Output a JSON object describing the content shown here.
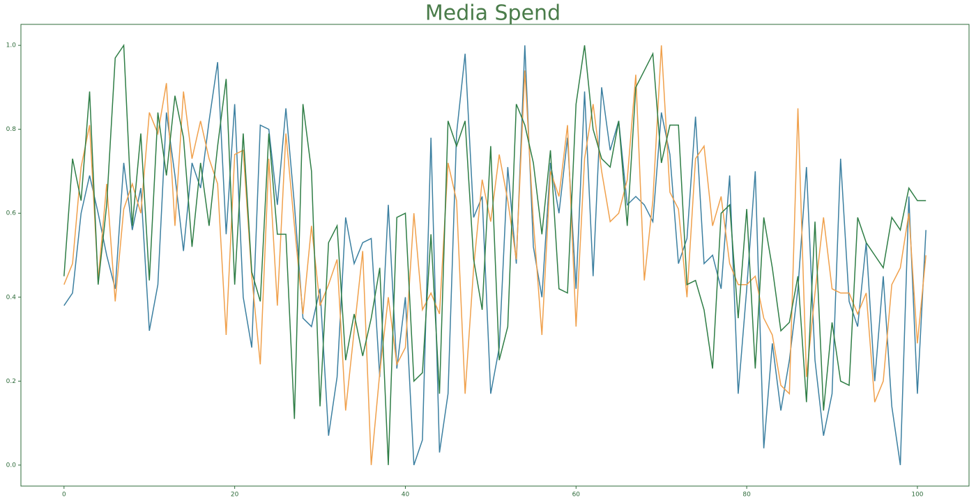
{
  "chart_data": {
    "type": "line",
    "title": "Media Spend",
    "x": [
      0,
      1,
      2,
      3,
      4,
      5,
      6,
      7,
      8,
      9,
      10,
      11,
      12,
      13,
      14,
      15,
      16,
      17,
      18,
      19,
      20,
      21,
      22,
      23,
      24,
      25,
      26,
      27,
      28,
      29,
      30,
      31,
      32,
      33,
      34,
      35,
      36,
      37,
      38,
      39,
      40,
      41,
      42,
      43,
      44,
      45,
      46,
      47,
      48,
      49,
      50,
      51,
      52,
      53,
      54,
      55,
      56,
      57,
      58,
      59,
      60,
      61,
      62,
      63,
      64,
      65,
      66,
      67,
      68,
      69,
      70,
      71,
      72,
      73,
      74,
      75,
      76,
      77,
      78,
      79,
      80,
      81,
      82,
      83,
      84,
      85,
      86,
      87,
      88,
      89,
      90,
      91,
      92,
      93,
      94,
      95,
      96,
      97,
      98,
      99,
      100,
      101
    ],
    "series": [
      {
        "color": "#3b7fa0",
        "values": [
          0.38,
          0.41,
          0.6,
          0.69,
          0.6,
          0.5,
          0.42,
          0.72,
          0.56,
          0.66,
          0.32,
          0.43,
          0.84,
          0.69,
          0.51,
          0.72,
          0.66,
          0.82,
          0.96,
          0.55,
          0.86,
          0.4,
          0.28,
          0.81,
          0.8,
          0.62,
          0.85,
          0.62,
          0.35,
          0.33,
          0.42,
          0.07,
          0.21,
          0.59,
          0.48,
          0.53,
          0.54,
          0.21,
          0.62,
          0.23,
          0.4,
          0,
          0.06,
          0.78,
          0.03,
          0.17,
          0.79,
          0.98,
          0.59,
          0.64,
          0.17,
          0.28,
          0.71,
          0.48,
          1,
          0.52,
          0.4,
          0.72,
          0.6,
          0.78,
          0.42,
          0.89,
          0.45,
          0.9,
          0.75,
          0.82,
          0.62,
          0.64,
          0.62,
          0.58,
          0.84,
          0.74,
          0.48,
          0.54,
          0.83,
          0.48,
          0.5,
          0.42,
          0.69,
          0.17,
          0.42,
          0.7,
          0.04,
          0.29,
          0.13,
          0.25,
          0.42,
          0.71,
          0.25,
          0.07,
          0.17,
          0.73,
          0.39,
          0.33,
          0.53,
          0.2,
          0.45,
          0.14,
          0,
          0.64,
          0.17,
          0.56
        ]
      },
      {
        "color": "#f0a04b",
        "values": [
          0.43,
          0.48,
          0.71,
          0.81,
          0.44,
          0.67,
          0.39,
          0.61,
          0.67,
          0.6,
          0.84,
          0.79,
          0.91,
          0.57,
          0.89,
          0.73,
          0.82,
          0.73,
          0.67,
          0.31,
          0.74,
          0.75,
          0.45,
          0.24,
          0.73,
          0.38,
          0.79,
          0.57,
          0.36,
          0.57,
          0.38,
          0.43,
          0.49,
          0.13,
          0.32,
          0.51,
          0,
          0.22,
          0.4,
          0.24,
          0.28,
          0.6,
          0.37,
          0.41,
          0.36,
          0.72,
          0.63,
          0.17,
          0.47,
          0.68,
          0.58,
          0.74,
          0.63,
          0.49,
          0.94,
          0.58,
          0.31,
          0.7,
          0.64,
          0.81,
          0.33,
          0.73,
          0.86,
          0.7,
          0.58,
          0.6,
          0.68,
          0.93,
          0.44,
          0.63,
          1,
          0.65,
          0.61,
          0.4,
          0.73,
          0.76,
          0.57,
          0.64,
          0.48,
          0.43,
          0.43,
          0.45,
          0.35,
          0.31,
          0.19,
          0.17,
          0.85,
          0.21,
          0.41,
          0.59,
          0.42,
          0.41,
          0.41,
          0.36,
          0.41,
          0.15,
          0.2,
          0.43,
          0.47,
          0.6,
          0.29,
          0.5
        ]
      },
      {
        "color": "#2e7d45",
        "values": [
          0.45,
          0.73,
          0.63,
          0.89,
          0.43,
          0.62,
          0.97,
          1,
          0.57,
          0.79,
          0.44,
          0.84,
          0.69,
          0.88,
          0.78,
          0.52,
          0.72,
          0.57,
          0.76,
          0.92,
          0.43,
          0.79,
          0.46,
          0.39,
          0.79,
          0.55,
          0.55,
          0.11,
          0.86,
          0.7,
          0.14,
          0.53,
          0.57,
          0.25,
          0.36,
          0.26,
          0.35,
          0.47,
          0,
          0.59,
          0.6,
          0.2,
          0.22,
          0.55,
          0.17,
          0.82,
          0.76,
          0.82,
          0.49,
          0.37,
          0.76,
          0.25,
          0.33,
          0.86,
          0.81,
          0.72,
          0.55,
          0.75,
          0.42,
          0.41,
          0.86,
          1,
          0.8,
          0.73,
          0.71,
          0.82,
          0.57,
          0.9,
          0.94,
          0.98,
          0.72,
          0.81,
          0.81,
          0.43,
          0.44,
          0.37,
          0.23,
          0.6,
          0.62,
          0.35,
          0.61,
          0.23,
          0.59,
          0.47,
          0.32,
          0.34,
          0.45,
          0.15,
          0.58,
          0.13,
          0.34,
          0.2,
          0.19,
          0.59,
          0.53,
          0.5,
          0.47,
          0.59,
          0.56,
          0.66,
          0.63,
          0.63
        ]
      }
    ],
    "xlim": [
      -5.05,
      106.05
    ],
    "ylim": [
      -0.05,
      1.05
    ],
    "xticks": [
      0,
      20,
      40,
      60,
      80,
      100
    ],
    "yticks": [
      {
        "value": 0,
        "label": "0.0"
      },
      {
        "value": 0.2,
        "label": "0.2"
      },
      {
        "value": 0.4,
        "label": "0.4"
      },
      {
        "value": 0.6,
        "label": "0.6"
      },
      {
        "value": 0.8,
        "label": "0.8"
      },
      {
        "value": 1,
        "label": "1.0"
      }
    ]
  }
}
